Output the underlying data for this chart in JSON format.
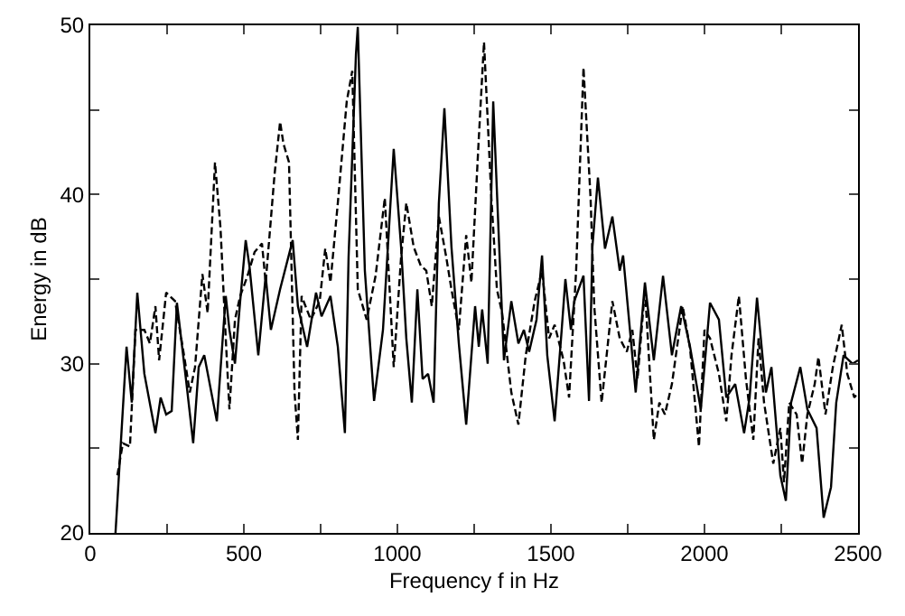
{
  "chart_data": {
    "type": "line",
    "xlabel": "Frequency f in Hz",
    "ylabel": "Energy in dB",
    "xlim": [
      0,
      2500
    ],
    "ylim": [
      20,
      50
    ],
    "xticks": [
      0,
      {
        "value": 250,
        "label": null
      },
      500,
      {
        "value": 750,
        "label": null
      },
      1000,
      {
        "value": 1250,
        "label": null
      },
      1500,
      {
        "value": 1750,
        "label": null
      },
      2000,
      {
        "value": 2250,
        "label": null
      },
      2500
    ],
    "yticks": [
      20,
      {
        "value": 25,
        "label": null
      },
      30,
      {
        "value": 35,
        "label": null
      },
      40,
      {
        "value": 45,
        "label": null
      },
      50
    ],
    "grid": false,
    "marker": "none",
    "series": [
      {
        "color": "#000000",
        "line_style": "solid",
        "x": [
          82,
          118,
          135,
          153,
          176,
          212,
          229,
          247,
          265,
          282,
          312,
          335,
          353,
          371,
          412,
          441,
          453,
          471,
          488,
          506,
          518,
          547,
          571,
          588,
          618,
          659,
          676,
          706,
          735,
          753,
          782,
          806,
          829,
          841,
          865,
          871,
          894,
          924,
          953,
          988,
          1012,
          1029,
          1047,
          1065,
          1082,
          1100,
          1118,
          1135,
          1153,
          1176,
          1200,
          1224,
          1253,
          1265,
          1276,
          1294,
          1312,
          1329,
          1347,
          1371,
          1394,
          1412,
          1429,
          1453,
          1471,
          1488,
          1512,
          1535,
          1547,
          1565,
          1576,
          1606,
          1624,
          1635,
          1653,
          1676,
          1700,
          1724,
          1735,
          1776,
          1806,
          1835,
          1865,
          1894,
          1924,
          1953,
          1988,
          2018,
          2047,
          2071,
          2100,
          2129,
          2147,
          2171,
          2200,
          2218,
          2247,
          2265,
          2282,
          2312,
          2335,
          2365,
          2388,
          2412,
          2429,
          2453,
          2482,
          2500
        ],
        "values": [
          20,
          31,
          27.7,
          34.2,
          29.4,
          25.9,
          28,
          27,
          27.2,
          33.6,
          29,
          25.3,
          29.8,
          30.5,
          26.6,
          34,
          32,
          30,
          33.7,
          37.3,
          35.8,
          30.5,
          35.2,
          32,
          34.4,
          37.3,
          33.4,
          31,
          34.2,
          32.8,
          34,
          31,
          25.9,
          36.3,
          48.3,
          49.9,
          35.5,
          27.8,
          32,
          42.7,
          36.9,
          31.5,
          27.7,
          34.4,
          29.1,
          29.4,
          27.7,
          39.5,
          45.1,
          36.9,
          31.2,
          26.4,
          33.4,
          31,
          33.2,
          30,
          45.5,
          38,
          30.2,
          33.7,
          31.2,
          32,
          30.7,
          32.6,
          36.4,
          30.5,
          26.6,
          32,
          35,
          32,
          33.7,
          35.2,
          27.8,
          36.9,
          41,
          36.8,
          38.7,
          35.5,
          36.4,
          28.3,
          34.8,
          30.2,
          35.2,
          30.5,
          33.4,
          31,
          27.3,
          33.6,
          32.6,
          28,
          28.8,
          25.9,
          28,
          33.9,
          28.3,
          29.8,
          23.4,
          21.9,
          27.7,
          29.8,
          27.3,
          26.2,
          20.9,
          22.7,
          27.7,
          30.5,
          30,
          30.2
        ]
      },
      {
        "color": "#000000",
        "line_style": "dashed",
        "x": [
          88,
          106,
          129,
          147,
          176,
          194,
          212,
          224,
          247,
          276,
          306,
          324,
          341,
          365,
          382,
          406,
          424,
          441,
          453,
          471,
          488,
          512,
          535,
          559,
          571,
          600,
          618,
          629,
          647,
          665,
          676,
          688,
          718,
          747,
          765,
          782,
          806,
          835,
          853,
          871,
          900,
          929,
          959,
          988,
          1012,
          1029,
          1053,
          1076,
          1094,
          1112,
          1135,
          1159,
          1176,
          1200,
          1224,
          1241,
          1265,
          1282,
          1306,
          1324,
          1341,
          1371,
          1394,
          1418,
          1447,
          1471,
          1494,
          1512,
          1541,
          1559,
          1582,
          1606,
          1629,
          1641,
          1665,
          1700,
          1724,
          1747,
          1765,
          1782,
          1806,
          1835,
          1853,
          1871,
          1894,
          1929,
          1953,
          1982,
          2000,
          2018,
          2047,
          2071,
          2088,
          2112,
          2135,
          2159,
          2176,
          2194,
          2224,
          2247,
          2259,
          2276,
          2300,
          2318,
          2335,
          2359,
          2371,
          2394,
          2418,
          2447,
          2465,
          2488,
          2500
        ],
        "values": [
          23.4,
          25.3,
          25.1,
          32,
          32,
          31.2,
          33.4,
          30.2,
          34.2,
          33.7,
          30.4,
          28.3,
          29.8,
          35.3,
          33,
          41.9,
          38,
          31.5,
          27.3,
          32.6,
          34,
          35.2,
          36.6,
          37.1,
          34.8,
          41.2,
          44.3,
          43,
          41.9,
          28.3,
          25.5,
          34,
          32.6,
          33.7,
          36.8,
          34.8,
          39.5,
          45.5,
          47.3,
          34.4,
          32.6,
          35.2,
          39.8,
          29.8,
          36.3,
          39.5,
          36.9,
          35.8,
          35.5,
          33.4,
          38.7,
          36.3,
          34.4,
          32,
          37.6,
          34.8,
          43.3,
          49,
          39.8,
          34.4,
          33,
          28.3,
          26.4,
          30.5,
          33.7,
          35.5,
          31.5,
          32.3,
          30.2,
          28,
          35.5,
          47.5,
          39.8,
          33.4,
          27.7,
          33.7,
          31.5,
          30.7,
          32,
          29.1,
          34.4,
          25.5,
          27.7,
          27,
          28.8,
          33.4,
          30.9,
          25.1,
          32,
          31.5,
          29.4,
          26.6,
          30.5,
          34,
          29.1,
          25.5,
          31.5,
          27.7,
          24.1,
          26.2,
          23,
          27.7,
          27,
          24.1,
          27,
          28.8,
          30.4,
          27,
          29.8,
          32.3,
          29.4,
          28,
          28.3
        ]
      }
    ]
  }
}
